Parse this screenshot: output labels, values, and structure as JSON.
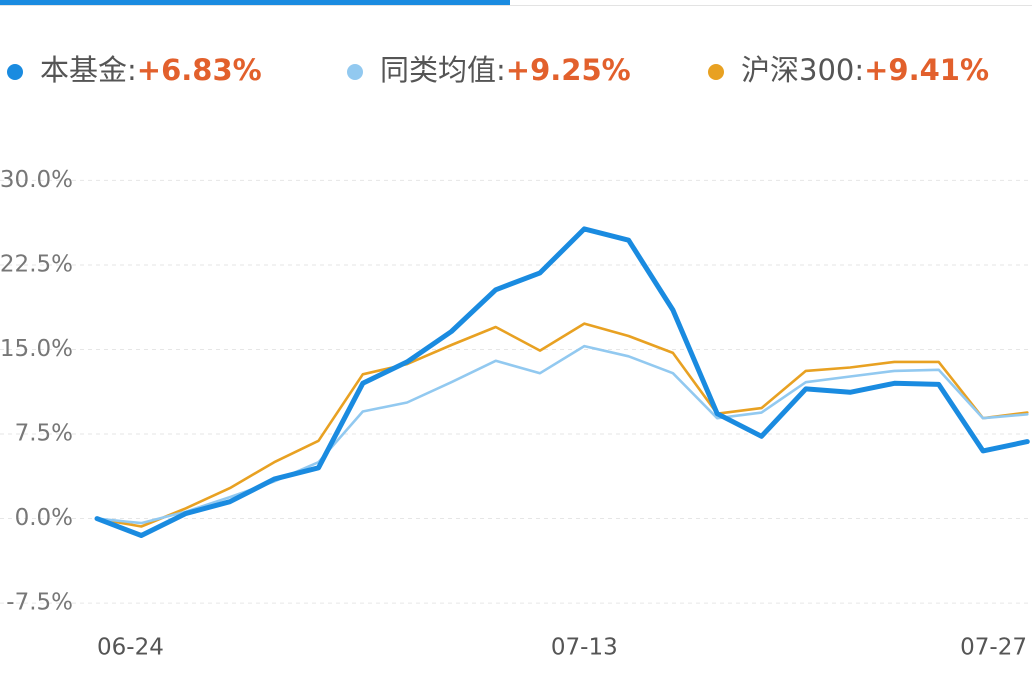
{
  "chart_data": {
    "type": "line",
    "categories": [
      "06-24",
      null,
      null,
      null,
      null,
      null,
      null,
      null,
      null,
      null,
      null,
      "07-13",
      null,
      null,
      null,
      null,
      null,
      null,
      null,
      null,
      null,
      "07-27"
    ],
    "series": [
      {
        "name": "本基金:",
        "summary": "+6.83%",
        "color": "#1a8be0",
        "values": [
          0,
          -1.5,
          0.44,
          1.5,
          3.5,
          4.5,
          12.0,
          13.9,
          16.6,
          20.3,
          21.8,
          25.7,
          24.7,
          18.5,
          9.3,
          7.3,
          11.5,
          11.2,
          12.0,
          11.9,
          6.0,
          6.83
        ]
      },
      {
        "name": "同类均值:",
        "summary": "+9.25%",
        "color": "#92c9f0",
        "values": [
          0,
          -0.4,
          0.6,
          1.9,
          3.3,
          5.0,
          9.5,
          10.3,
          12.1,
          14.0,
          12.9,
          15.3,
          14.4,
          12.9,
          8.9,
          9.4,
          12.1,
          12.6,
          13.1,
          13.2,
          8.9,
          9.25
        ]
      },
      {
        "name": "沪深300:",
        "summary": "+9.41%",
        "color": "#e8a122",
        "values": [
          0,
          -0.7,
          0.9,
          2.7,
          5.0,
          6.9,
          12.8,
          13.7,
          15.4,
          17.0,
          14.9,
          17.3,
          16.2,
          14.7,
          9.3,
          9.8,
          13.1,
          13.4,
          13.9,
          13.9,
          8.9,
          9.41
        ]
      }
    ],
    "ylim": [
      -9,
      32.7
    ],
    "yticks": [
      {
        "value": -7.5,
        "label": "-7.5%"
      },
      {
        "value": 0,
        "label": "0.0%"
      },
      {
        "value": 7.5,
        "label": "7.5%"
      },
      {
        "value": 15,
        "label": "15.0%"
      },
      {
        "value": 22.5,
        "label": "22.5%"
      },
      {
        "value": 30,
        "label": "30.0%"
      }
    ],
    "grid": true
  }
}
